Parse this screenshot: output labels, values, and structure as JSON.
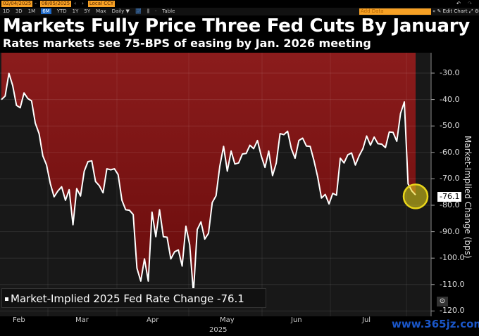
{
  "toolbar": {
    "start_date": "02/04/2025",
    "end_date": "08/05/2025",
    "currency": "Local CCY",
    "periods": [
      "1D",
      "3D",
      "1M",
      "6M",
      "YTD",
      "1Y",
      "5Y",
      "Max"
    ],
    "active_period": "6M",
    "frequency": "Daily ▼",
    "table_label": "Table",
    "add_data_placeholder": "Add Data",
    "edit_chart_label": "Edit Chart"
  },
  "chart_data": {
    "type": "area",
    "title": "Markets Fully Price Three Fed Cuts By January",
    "subtitle": "Rates markets see 75-BPS of easing by Jan. 2026 meeting",
    "ylabel": "Market-Implied Change (bps)",
    "xlabel": "2025",
    "x_range": [
      "02/04/2025",
      "08/05/2025"
    ],
    "x_ticks": [
      "Feb",
      "Mar",
      "Apr",
      "May",
      "Jun",
      "Jul"
    ],
    "y_ticks": [
      "-30.0",
      "-40.0",
      "-50.0",
      "-60.0",
      "-70.0",
      "-80.0",
      "-90.0",
      "-100.0",
      "-110.0",
      "-120.0"
    ],
    "ylim": [
      -122,
      -22
    ],
    "grid": true,
    "legend_placement": "bottom-left",
    "series": [
      {
        "name": "Market-Implied 2025 Fed Rate Change",
        "last_value": "-76.1",
        "line_color": "#ffffff",
        "fill_color": "#8b1c1c",
        "values": [
          -40.0,
          -38.7,
          -30.1,
          -34.7,
          -42.2,
          -43.1,
          -37.5,
          -39.6,
          -40.5,
          -48.9,
          -52.9,
          -61.3,
          -64.8,
          -71.9,
          -76.8,
          -74.6,
          -73.0,
          -78.1,
          -74.1,
          -87.4,
          -73.7,
          -76.5,
          -67.1,
          -63.5,
          -63.2,
          -71.0,
          -72.6,
          -75.3,
          -66.2,
          -66.6,
          -66.2,
          -68.4,
          -78.1,
          -81.7,
          -81.9,
          -83.5,
          -103.8,
          -108.7,
          -100.3,
          -108.7,
          -82.6,
          -91.9,
          -81.7,
          -91.9,
          -92.1,
          -100.3,
          -97.6,
          -96.9,
          -103.0,
          -87.9,
          -95.0,
          -113.2,
          -89.2,
          -86.3,
          -92.8,
          -90.6,
          -79.0,
          -76.4,
          -65.3,
          -57.7,
          -67.1,
          -59.5,
          -64.4,
          -64.0,
          -60.6,
          -60.4,
          -57.3,
          -58.6,
          -55.5,
          -61.3,
          -65.7,
          -59.5,
          -68.8,
          -64.0,
          -52.9,
          -53.3,
          -52.0,
          -58.6,
          -62.2,
          -55.5,
          -54.6,
          -57.6,
          -57.7,
          -63.1,
          -69.3,
          -77.3,
          -75.9,
          -79.5,
          -75.5,
          -76.2,
          -62.2,
          -64.0,
          -60.9,
          -60.2,
          -64.8,
          -61.3,
          -58.6,
          -53.8,
          -57.3,
          -54.2,
          -56.7,
          -56.9,
          -58.2,
          -52.3,
          -52.4,
          -55.8,
          -45.3,
          -40.9,
          -71.9,
          -74.6,
          -76.1
        ]
      }
    ],
    "highlight_color": "#e8d51a"
  },
  "watermark": "www.365jz.com"
}
